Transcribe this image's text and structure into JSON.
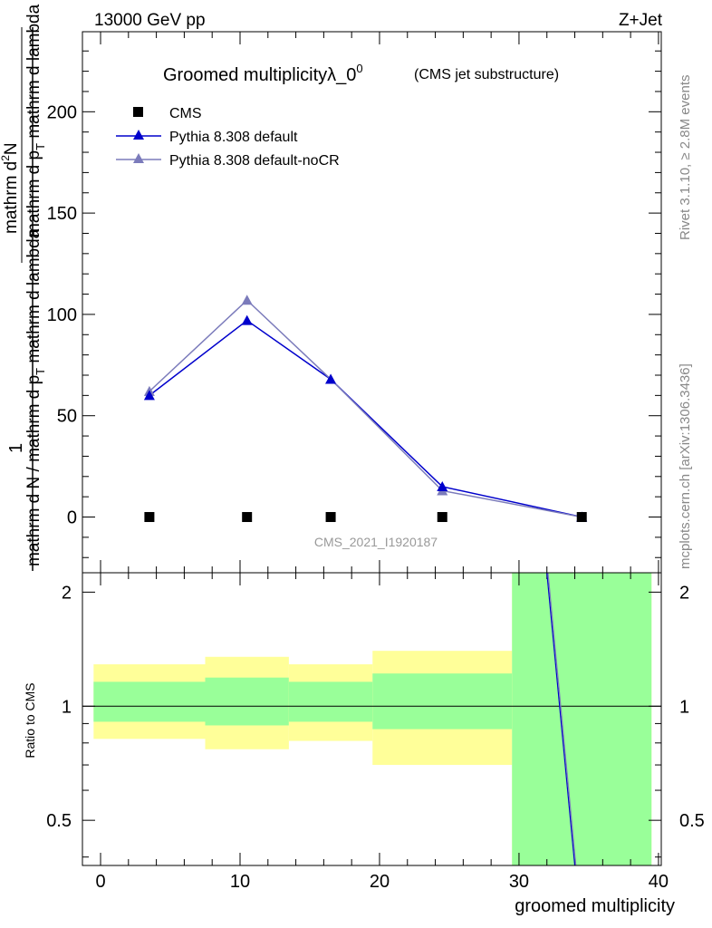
{
  "header": {
    "energy": "13000 GeV pp",
    "process": "Z+Jet"
  },
  "side_labels": {
    "rivet": "Rivet 3.1.10, ≥ 2.8M events",
    "source": "mcplots.cern.ch [arXiv:1306.3436]"
  },
  "analysis_id": "CMS_2021_I1920187",
  "colors": {
    "cms": "#000000",
    "default": "#0000cc",
    "nocr": "#7b7bbb",
    "band_yellow": "#ffff99",
    "band_green": "#99ff99"
  },
  "chart_data": [
    {
      "type": "line",
      "panel": "main",
      "title": "Groomed multiplicityλ_0",
      "title_superscript": "0",
      "subtitle": "(CMS jet substructure)",
      "ylabel_parts": {
        "numerator": "1",
        "denominator_left": "mathrm d N / mathrm d p",
        "denominator_sub": "T",
        "denominator_right": "mathrm d lambda",
        "right_num": "mathrm d",
        "right_sup": "2",
        "right_N": "N",
        "right_den": "mathrm d p",
        "right_den_sub": "T",
        "right_den_tail": "mathrm d lambda"
      },
      "xlim": [
        -1.3,
        40.2
      ],
      "ylim": [
        -27.5,
        239.5
      ],
      "yticks": [
        0,
        50,
        100,
        150,
        200
      ],
      "legend_position": "top-left",
      "series": [
        {
          "name": "CMS",
          "marker": "square",
          "x": [
            3.5,
            10.5,
            16.5,
            24.5,
            34.5
          ],
          "values": [
            0,
            0,
            0,
            0,
            0
          ]
        },
        {
          "name": "Pythia 8.308 default",
          "marker": "triangle",
          "x": [
            3.5,
            10.5,
            16.5,
            24.5,
            34.5
          ],
          "values": [
            60,
            97,
            68,
            15,
            0
          ]
        },
        {
          "name": "Pythia 8.308 default-noCR",
          "marker": "triangle",
          "x": [
            3.5,
            10.5,
            16.5,
            24.5,
            34.5
          ],
          "values": [
            62,
            107,
            68,
            13,
            0
          ]
        }
      ]
    },
    {
      "type": "line",
      "panel": "ratio",
      "ylabel": "Ratio to CMS",
      "xlabel": "groomed multiplicity",
      "xlim": [
        -1.3,
        40.2
      ],
      "ylim": [
        0.38,
        2.25
      ],
      "yticks": [
        0.5,
        1,
        2
      ],
      "ytick_labels": [
        "0.5",
        "1",
        "2"
      ],
      "xticks": [
        0,
        10,
        20,
        30,
        40
      ],
      "xtick_labels": [
        "0",
        "10",
        "20",
        "30",
        "40"
      ],
      "bins": [
        {
          "x_low": -0.5,
          "x_high": 7.5,
          "yellow": [
            0.82,
            1.29
          ],
          "green": [
            0.91,
            1.16
          ]
        },
        {
          "x_low": 7.5,
          "x_high": 13.5,
          "yellow": [
            0.77,
            1.35
          ],
          "green": [
            0.89,
            1.19
          ]
        },
        {
          "x_low": 13.5,
          "x_high": 19.5,
          "yellow": [
            0.81,
            1.29
          ],
          "green": [
            0.91,
            1.16
          ]
        },
        {
          "x_low": 19.5,
          "x_high": 29.5,
          "yellow": [
            0.7,
            1.4
          ],
          "green": [
            0.87,
            1.22
          ]
        },
        {
          "x_low": 29.5,
          "x_high": 39.5,
          "yellow": [
            0.38,
            2.25
          ],
          "green": [
            0.38,
            2.25
          ]
        }
      ],
      "series": [
        {
          "name": "Pythia 8.308 default",
          "x": [
            32.0,
            34.0
          ],
          "values": [
            2.25,
            0.38
          ]
        },
        {
          "name": "Pythia 8.308 default-noCR",
          "x": [
            32.0,
            34.0
          ],
          "values": [
            2.25,
            0.38
          ]
        }
      ]
    }
  ]
}
